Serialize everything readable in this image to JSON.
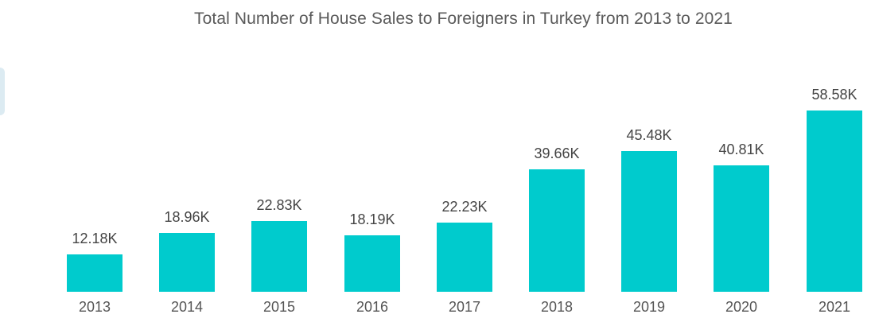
{
  "chart_data": {
    "type": "bar",
    "title": "Total Number of House Sales to Foreigners in Turkey from 2013 to 2021",
    "xlabel": "",
    "ylabel": "",
    "categories": [
      "2013",
      "2014",
      "2015",
      "2016",
      "2017",
      "2018",
      "2019",
      "2020",
      "2021"
    ],
    "values": [
      12180,
      18960,
      22830,
      18190,
      22230,
      39660,
      45480,
      40810,
      58580
    ],
    "value_labels": [
      "12.18K",
      "18.96K",
      "22.83K",
      "18.19K",
      "22.23K",
      "39.66K",
      "45.48K",
      "40.81K",
      "58.58K"
    ],
    "ylim": [
      0,
      60000
    ],
    "grid": false,
    "legend": null,
    "bar_color": "#00cbcd"
  },
  "colors": {
    "bar": "#00cbcd",
    "title": "#5a5a5a",
    "label": "#444444"
  }
}
